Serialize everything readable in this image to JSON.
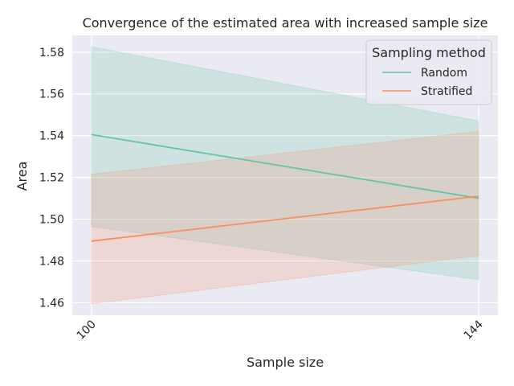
{
  "chart_data": {
    "type": "line",
    "title": "Convergence of the estimated area with increased sample size",
    "xlabel": "Sample size",
    "ylabel": "Area",
    "x": [
      100,
      144
    ],
    "x_tick_labels": [
      "100",
      "144"
    ],
    "ylim": [
      1.454,
      1.588
    ],
    "y_ticks": [
      1.46,
      1.48,
      1.5,
      1.52,
      1.54,
      1.56,
      1.58
    ],
    "y_tick_labels": [
      "1.46",
      "1.48",
      "1.50",
      "1.52",
      "1.54",
      "1.56",
      "1.58"
    ],
    "grid": true,
    "legend": {
      "title": "Sampling method",
      "placement": "top-right"
    },
    "series": [
      {
        "name": "Random",
        "color": "#66c2a5",
        "values": [
          1.5405,
          1.51
        ],
        "ci_lower": [
          1.4965,
          1.471
        ],
        "ci_upper": [
          1.5825,
          1.547
        ]
      },
      {
        "name": "Stratified",
        "color": "#fc8d62",
        "values": [
          1.4895,
          1.511
        ],
        "ci_lower": [
          1.4595,
          1.4825
        ],
        "ci_upper": [
          1.5215,
          1.542
        ]
      }
    ]
  }
}
